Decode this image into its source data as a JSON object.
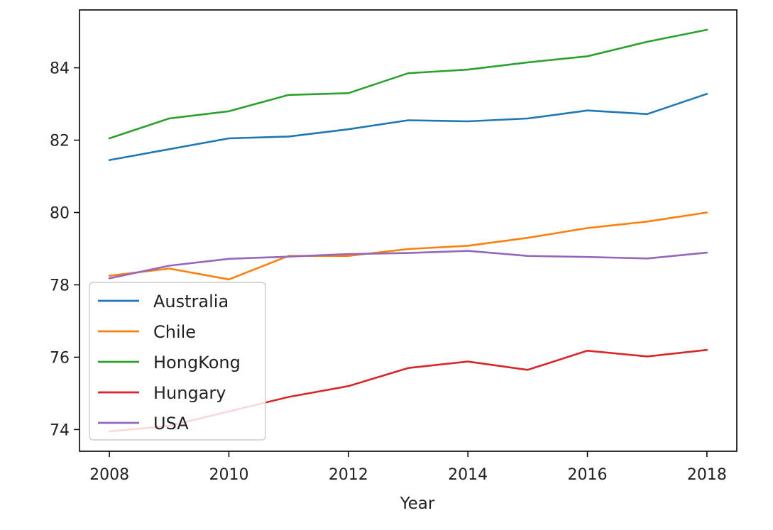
{
  "chart_data": {
    "type": "line",
    "title": "",
    "xlabel": "Year",
    "ylabel": "",
    "x": [
      2008,
      2009,
      2010,
      2011,
      2012,
      2013,
      2014,
      2015,
      2016,
      2017,
      2018
    ],
    "xlim": [
      2007.5,
      2018.5
    ],
    "ylim": [
      73.4,
      85.6
    ],
    "xticks": [
      2008,
      2010,
      2012,
      2014,
      2016,
      2018
    ],
    "yticks": [
      74,
      76,
      78,
      80,
      82,
      84
    ],
    "grid": false,
    "legend_position": "lower-left",
    "series": [
      {
        "name": "Australia",
        "color": "#1f77b4",
        "values": [
          81.45,
          81.75,
          82.05,
          82.1,
          82.3,
          82.55,
          82.52,
          82.6,
          82.82,
          82.72,
          83.28
        ]
      },
      {
        "name": "Chile",
        "color": "#ff7f0e",
        "values": [
          78.25,
          78.45,
          78.15,
          78.8,
          78.8,
          78.99,
          79.08,
          79.3,
          79.57,
          79.75,
          80.0
        ]
      },
      {
        "name": "HongKong",
        "color": "#2ca02c",
        "values": [
          82.05,
          82.6,
          82.8,
          83.25,
          83.3,
          83.85,
          83.95,
          84.15,
          84.32,
          84.72,
          85.05
        ]
      },
      {
        "name": "Hungary",
        "color": "#d62728",
        "values": [
          73.95,
          74.1,
          74.5,
          74.9,
          75.2,
          75.7,
          75.88,
          75.65,
          76.18,
          76.02,
          76.2
        ]
      },
      {
        "name": "USA",
        "color": "#9467bd",
        "values": [
          78.18,
          78.53,
          78.72,
          78.78,
          78.85,
          78.88,
          78.94,
          78.8,
          78.77,
          78.73,
          78.89
        ]
      }
    ]
  }
}
